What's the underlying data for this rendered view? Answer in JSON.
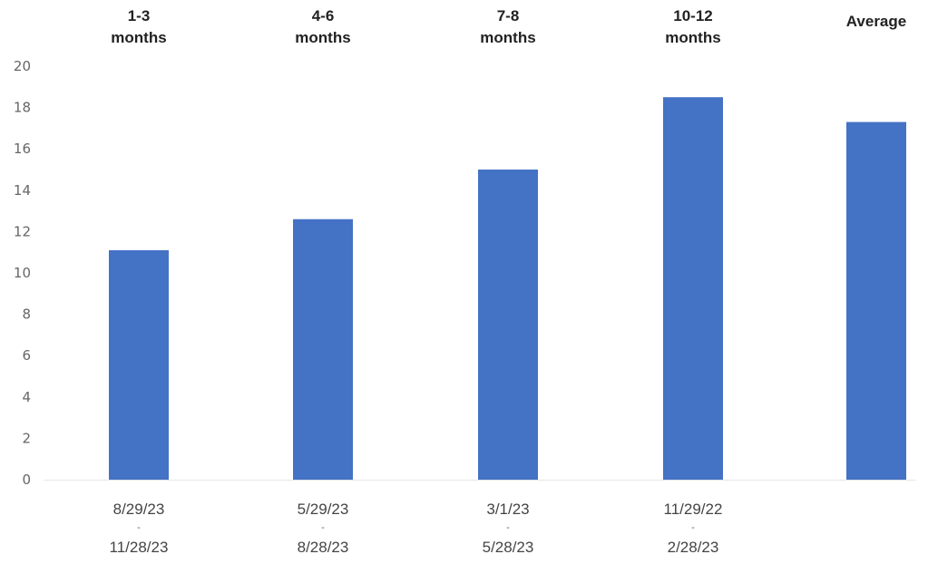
{
  "chart_data": {
    "type": "bar",
    "title": "",
    "xlabel": "",
    "ylabel": "",
    "ylim": [
      0,
      20
    ],
    "yticks": [
      0,
      2,
      4,
      6,
      8,
      10,
      12,
      14,
      16,
      18,
      20
    ],
    "grid": false,
    "legend": "none",
    "bar_color": "#4472C4",
    "categories": [
      "1-3 months",
      "4-6 months",
      "7-8 months",
      "10-12 months",
      "Average"
    ],
    "category_labels_top": [
      [
        "1-3",
        "months"
      ],
      [
        "4-6",
        "months"
      ],
      [
        "7-8",
        "months"
      ],
      [
        "10-12",
        "months"
      ],
      [
        "Average"
      ]
    ],
    "category_labels_bottom": [
      [
        "8/29/23",
        "-",
        "11/28/23"
      ],
      [
        "5/29/23",
        "-",
        "8/28/23"
      ],
      [
        "3/1/23",
        "-",
        "5/28/23"
      ],
      [
        "11/29/22",
        "-",
        "2/28/23"
      ],
      []
    ],
    "series": [
      {
        "values": [
          11.1,
          12.6,
          15.0,
          18.5,
          17.3
        ]
      }
    ]
  }
}
